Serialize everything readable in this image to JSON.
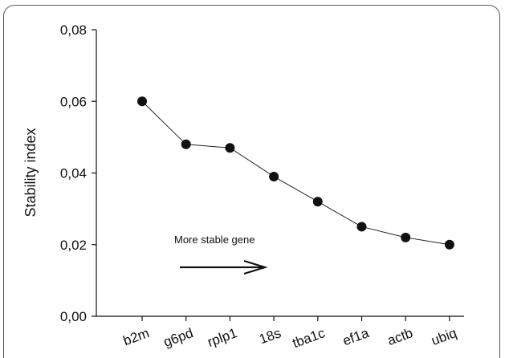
{
  "chart_data": {
    "type": "line",
    "categories": [
      "b2m",
      "g6pd",
      "rplp1",
      "18s",
      "tba1c",
      "ef1a",
      "actb",
      "ubiq"
    ],
    "values": [
      0.06,
      0.048,
      0.047,
      0.039,
      0.032,
      0.025,
      0.022,
      0.02
    ],
    "ylabel": "Stability index",
    "ylim": [
      0,
      0.08
    ],
    "yticks": [
      0,
      0.02,
      0.04,
      0.06,
      0.08
    ],
    "ytick_labels": [
      "0,00",
      "0,02",
      "0,04",
      "0,06",
      "0,08"
    ],
    "grid": false,
    "annotation": "More stable gene",
    "colors": {
      "line": "#222222",
      "marker": "#111111",
      "axis": "#111111"
    }
  }
}
